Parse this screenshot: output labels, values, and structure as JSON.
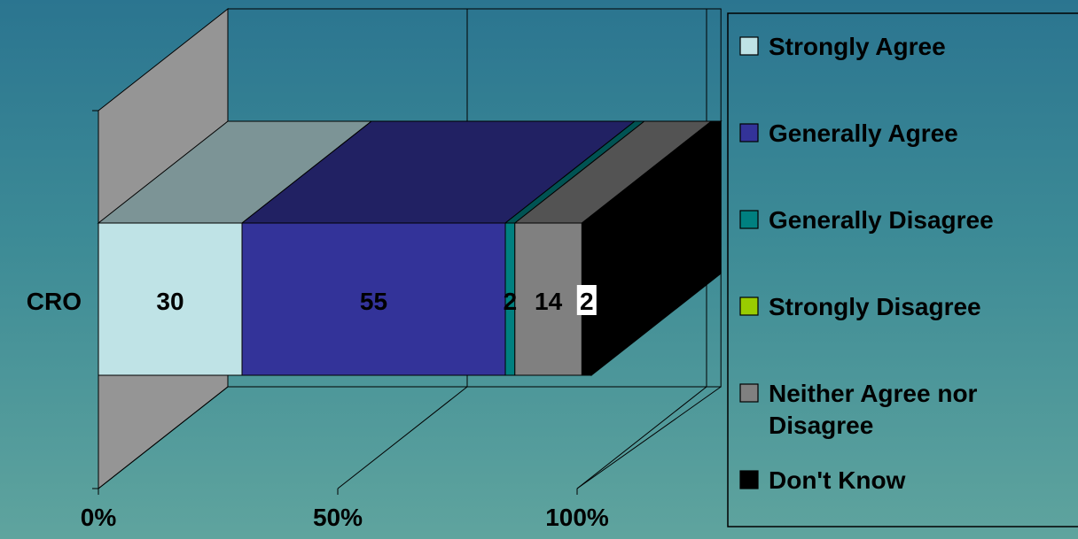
{
  "chart_data": {
    "type": "bar",
    "orientation": "horizontal",
    "stacked": "100%",
    "three_d": true,
    "categories": [
      "CRO"
    ],
    "series": [
      {
        "name": "Strongly Agree",
        "values": [
          30
        ],
        "color": "#bfe3e6"
      },
      {
        "name": "Generally Agree",
        "values": [
          55
        ],
        "color": "#333399"
      },
      {
        "name": "Generally Disagree",
        "values": [
          2
        ],
        "color": "#008080"
      },
      {
        "name": "Strongly Disagree",
        "values": [
          0
        ],
        "color": "#99cc00"
      },
      {
        "name": "Neither Agree nor Disagree",
        "values": [
          14
        ],
        "color": "#808080"
      },
      {
        "name": "Don't Know",
        "values": [
          2
        ],
        "color": "#000000"
      }
    ],
    "x_ticks": [
      "0%",
      "50%",
      "100%"
    ],
    "xlim": [
      0,
      103
    ],
    "data_labels": [
      "30",
      "55",
      "2",
      "14",
      "2"
    ],
    "grid": true,
    "legend_position": "right",
    "title": "",
    "xlabel": "",
    "ylabel": ""
  }
}
